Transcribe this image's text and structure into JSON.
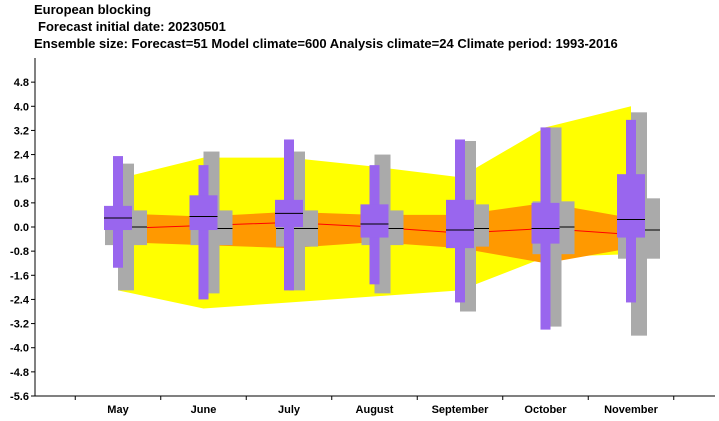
{
  "header": {
    "title": "European blocking",
    "line2": "Forecast initial date: 20230501",
    "line3": "Ensemble size: Forecast=51 Model climate=600 Analysis climate=24   Climate period: 1993-2016"
  },
  "chart_data": {
    "type": "boxplot",
    "categories": [
      "May",
      "June",
      "July",
      "August",
      "September",
      "October",
      "November"
    ],
    "ylim": [
      -5.6,
      5.6
    ],
    "yticks": [
      "4.8",
      "4.0",
      "3.2",
      "2.4",
      "1.6",
      "0.8",
      "0.0",
      "-0.8",
      "-1.6",
      "-2.4",
      "-3.2",
      "-4.0",
      "-4.8",
      "-5.6"
    ],
    "colors": {
      "climate_outer": "#ffff00",
      "climate_inner": "#ff9900",
      "climate_median": "#ff0000",
      "model_climate": "#aaaaaa",
      "forecast": "#9966ee",
      "median_mark": "#000000"
    },
    "climate_band": {
      "min": [
        -2.1,
        -2.7,
        -2.5,
        -2.3,
        -2.1,
        -1.0,
        -0.9
      ],
      "p25": [
        -0.5,
        -0.6,
        -0.7,
        -0.5,
        -0.7,
        -1.2,
        -0.7
      ],
      "median": [
        -0.05,
        0.05,
        0.15,
        0.0,
        -0.2,
        -0.05,
        -0.25
      ],
      "p75": [
        0.45,
        0.35,
        0.5,
        0.4,
        0.4,
        0.8,
        0.3
      ],
      "max": [
        1.6,
        2.3,
        2.3,
        2.0,
        1.65,
        3.3,
        4.0
      ]
    },
    "model_climate": [
      {
        "min": -2.1,
        "p25": -0.6,
        "median": 0.0,
        "p75": 0.55,
        "max": 2.1
      },
      {
        "min": -2.2,
        "p25": -0.6,
        "median": -0.05,
        "p75": 0.55,
        "max": 2.5
      },
      {
        "min": -2.1,
        "p25": -0.65,
        "median": -0.05,
        "p75": 0.55,
        "max": 2.5
      },
      {
        "min": -2.2,
        "p25": -0.6,
        "median": -0.05,
        "p75": 0.55,
        "max": 2.4
      },
      {
        "min": -2.8,
        "p25": -0.65,
        "median": -0.05,
        "p75": 0.75,
        "max": 2.85
      },
      {
        "min": -3.3,
        "p25": -0.9,
        "median": 0.0,
        "p75": 0.85,
        "max": 3.3
      },
      {
        "min": -3.6,
        "p25": -1.05,
        "median": -0.1,
        "p75": 0.95,
        "max": 3.8
      }
    ],
    "forecast": [
      {
        "min": -1.35,
        "p25": -0.1,
        "median": 0.3,
        "p75": 0.7,
        "max": 2.35
      },
      {
        "min": -2.4,
        "p25": -0.1,
        "median": 0.35,
        "p75": 1.05,
        "max": 2.05
      },
      {
        "min": -2.1,
        "p25": 0.0,
        "median": 0.45,
        "p75": 0.9,
        "max": 2.9
      },
      {
        "min": -1.9,
        "p25": -0.35,
        "median": 0.1,
        "p75": 0.75,
        "max": 2.05
      },
      {
        "min": -2.5,
        "p25": -0.7,
        "median": -0.1,
        "p75": 0.9,
        "max": 2.9
      },
      {
        "min": -3.4,
        "p25": -0.55,
        "median": -0.05,
        "p75": 0.8,
        "max": 3.3
      },
      {
        "min": -2.5,
        "p25": -0.35,
        "median": 0.25,
        "p75": 1.75,
        "max": 3.55
      }
    ]
  }
}
